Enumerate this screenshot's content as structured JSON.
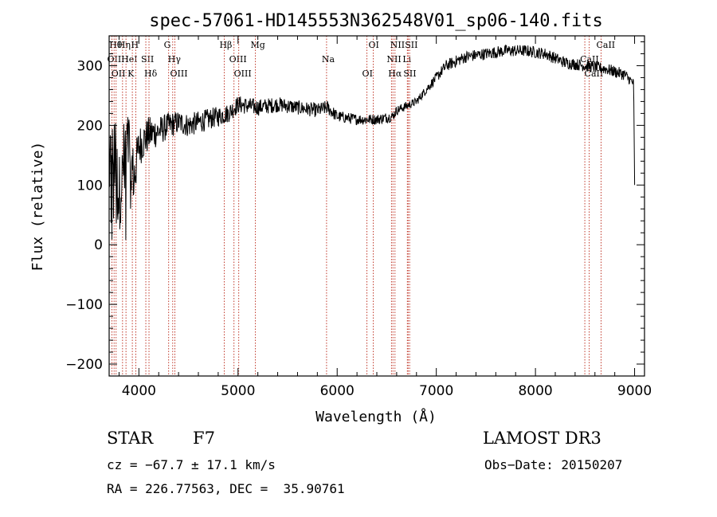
{
  "chart_data": {
    "type": "line",
    "title": "spec-57061-HD145553N362548V01_sp06-140.fits",
    "xlabel": "Wavelength (Å)",
    "ylabel": "Flux (relative)",
    "xlim": [
      3700,
      9100
    ],
    "ylim": [
      -220,
      350
    ],
    "x_ticks": [
      4000,
      5000,
      6000,
      7000,
      8000,
      9000
    ],
    "y_ticks": [
      -200,
      -100,
      0,
      100,
      200,
      300
    ],
    "x_tick_labels": [
      "4000",
      "5000",
      "6000",
      "7000",
      "8000",
      "9000"
    ],
    "y_tick_labels": [
      "−200",
      "−100",
      "0",
      "100",
      "200",
      "300"
    ],
    "series": [
      {
        "name": "flux",
        "x": [
          3700,
          3750,
          3800,
          3850,
          3900,
          3950,
          4000,
          4100,
          4200,
          4300,
          4400,
          4500,
          4700,
          4900,
          5000,
          5200,
          5400,
          5600,
          5800,
          5900,
          6000,
          6200,
          6400,
          6560,
          6600,
          6800,
          6950,
          7100,
          7300,
          7500,
          7700,
          7900,
          8100,
          8300,
          8500,
          8700,
          8900,
          8990,
          9000
        ],
        "y": [
          120,
          160,
          80,
          150,
          170,
          110,
          165,
          185,
          190,
          200,
          205,
          200,
          210,
          220,
          235,
          230,
          235,
          230,
          225,
          230,
          215,
          210,
          210,
          215,
          225,
          240,
          270,
          300,
          315,
          320,
          325,
          325,
          320,
          305,
          300,
          295,
          285,
          270,
          100
        ],
        "noise": [
          70,
          70,
          70,
          60,
          55,
          45,
          35,
          30,
          25,
          22,
          20,
          20,
          18,
          16,
          15,
          14,
          13,
          12,
          12,
          12,
          10,
          9,
          9,
          9,
          8,
          7,
          8,
          10,
          10,
          10,
          10,
          10,
          10,
          10,
          10,
          10,
          10,
          8,
          0
        ]
      }
    ],
    "line_markers": [
      {
        "x": 3750,
        "label": "Hθ"
      },
      {
        "x": 3728,
        "label": "OII"
      },
      {
        "x": 3770,
        "label": "OII"
      },
      {
        "x": 3835,
        "label": "Hη"
      },
      {
        "x": 3870,
        "label": "HeI"
      },
      {
        "x": 3934,
        "label": "K"
      },
      {
        "x": 3969,
        "label": "H"
      },
      {
        "x": 4070,
        "label": "SII"
      },
      {
        "x": 4102,
        "label": "Hδ"
      },
      {
        "x": 4300,
        "label": "G"
      },
      {
        "x": 4341,
        "label": "Hγ"
      },
      {
        "x": 4363,
        "label": "OIII"
      },
      {
        "x": 4861,
        "label": "Hβ"
      },
      {
        "x": 4959,
        "label": "OIII"
      },
      {
        "x": 5007,
        "label": "OIII"
      },
      {
        "x": 5175,
        "label": "Mg"
      },
      {
        "x": 5893,
        "label": "Na"
      },
      {
        "x": 6300,
        "label": "OI"
      },
      {
        "x": 6364,
        "label": "OI"
      },
      {
        "x": 6548,
        "label": "NII"
      },
      {
        "x": 6563,
        "label": "Hα"
      },
      {
        "x": 6583,
        "label": "NII"
      },
      {
        "x": 6708,
        "label": "Li"
      },
      {
        "x": 6716,
        "label": "SII"
      },
      {
        "x": 6731,
        "label": "SII"
      },
      {
        "x": 8498,
        "label": "CaII"
      },
      {
        "x": 8542,
        "label": "CaII"
      },
      {
        "x": 8662,
        "label": "CaII"
      }
    ]
  },
  "footer": {
    "object_type": "STAR",
    "subclass": "F7",
    "survey": "LAMOST DR3",
    "cz": "cz = −67.7 ± 17.1 km/s",
    "obs_date": "Obs−Date: 20150207",
    "coords": "RA = 226.77563, DEC =  35.90761"
  },
  "colors": {
    "axis": "#000000",
    "spectrum": "#000000",
    "marker_line": "#c0392b"
  }
}
